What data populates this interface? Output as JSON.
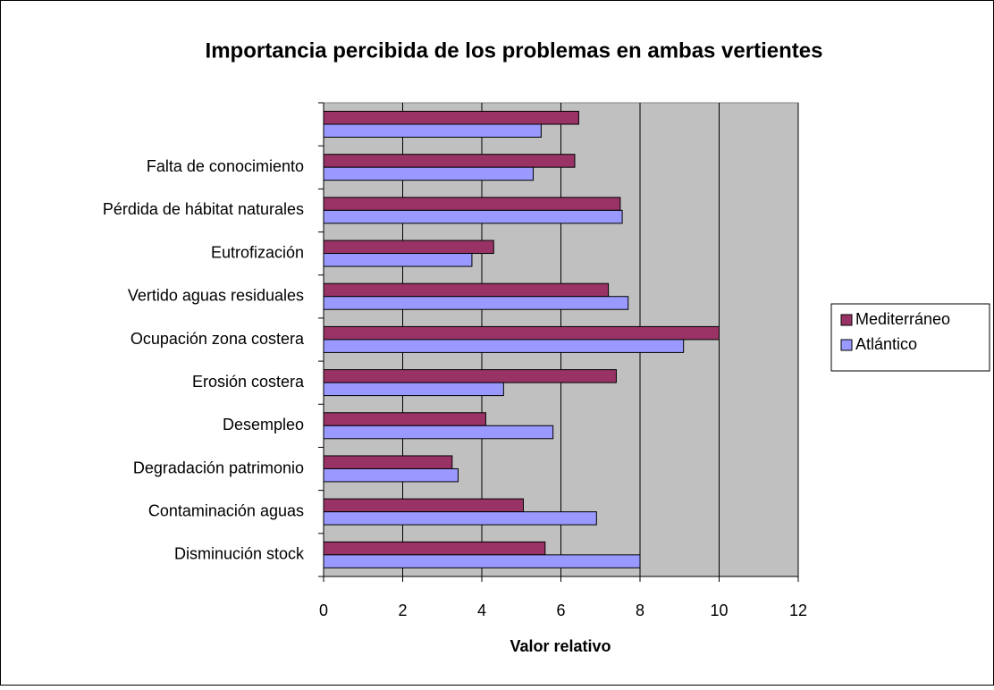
{
  "chart_data": {
    "type": "hbar",
    "title": "Importancia percibida de los problemas en ambas vertientes",
    "xlabel": "Valor relativo",
    "categories": [
      null,
      "Falta de conocimiento",
      "Pérdida de hábitat naturales",
      "Eutrofización",
      "Vertido aguas residuales",
      "Ocupación zona costera",
      "Erosión costera",
      "Desempleo",
      "Degradación patrimonio",
      "Contaminación aguas",
      "Disminución stock"
    ],
    "series": [
      {
        "name": "Mediterráneo",
        "color": "#993366",
        "values": [
          6.45,
          6.35,
          7.5,
          4.3,
          7.2,
          10,
          7.4,
          4.1,
          3.25,
          5.05,
          5.6
        ]
      },
      {
        "name": "Atlántico",
        "color": "#9999ff",
        "values": [
          5.5,
          5.3,
          7.55,
          3.75,
          7.7,
          9.1,
          4.55,
          5.8,
          3.4,
          6.9,
          8
        ]
      }
    ],
    "xlim": [
      0,
      12
    ],
    "xticks": [
      0,
      2,
      4,
      6,
      8,
      10,
      12
    ],
    "grid": true,
    "legend": "right"
  }
}
